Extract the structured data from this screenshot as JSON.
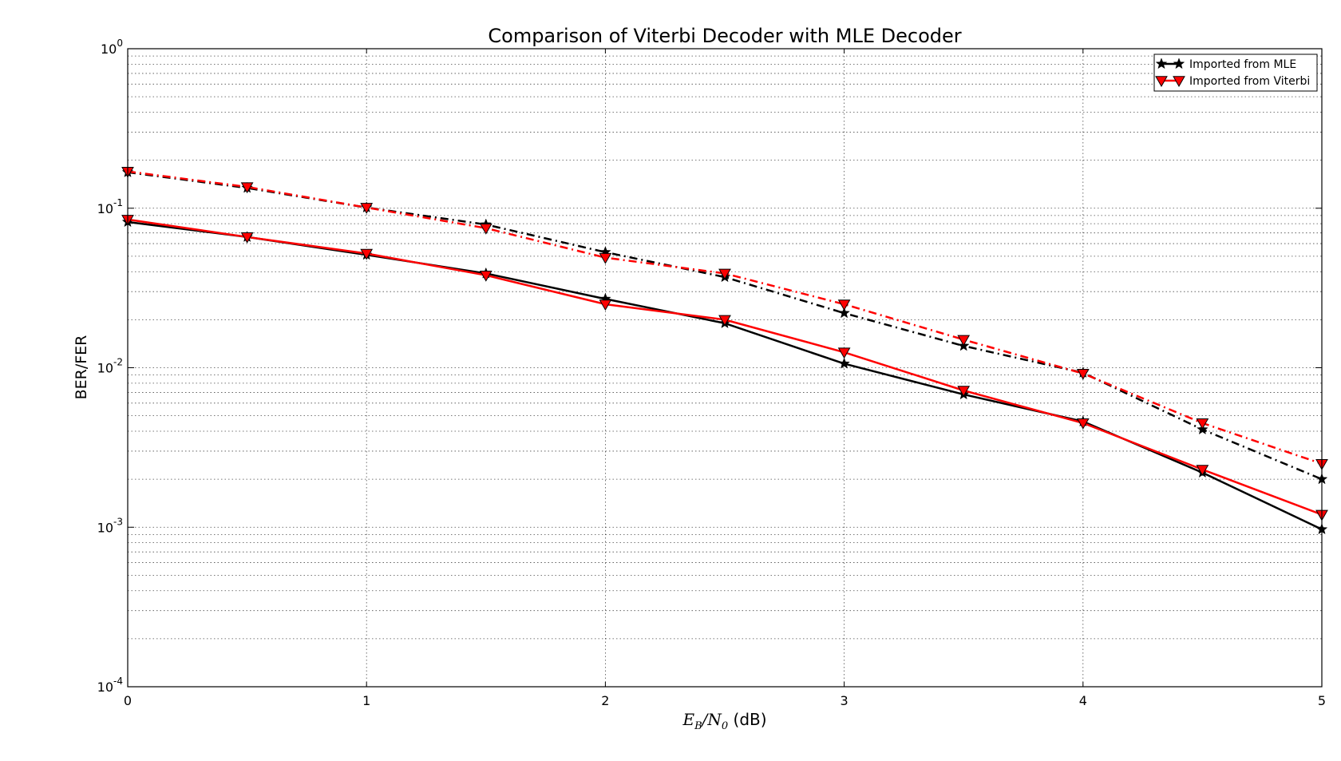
{
  "chart_data": {
    "type": "line",
    "title": "Comparison of Viterbi Decoder with MLE Decoder",
    "xlabel": {
      "main": "E",
      "main_sub": "B",
      "slash": "/N",
      "slash_sub": "0",
      "unit": " (dB)"
    },
    "ylabel": "BER/FER",
    "xlim": [
      0,
      5
    ],
    "ylim": [
      0.0001,
      1
    ],
    "yscale": "log",
    "grid": true,
    "legend_position": "top-right",
    "x_ticks": [
      "0",
      "1",
      "2",
      "3",
      "4",
      "5"
    ],
    "y_ticks": [
      {
        "base": "10",
        "exp": "-4"
      },
      {
        "base": "10",
        "exp": "-3"
      },
      {
        "base": "10",
        "exp": "-2"
      },
      {
        "base": "10",
        "exp": "-1"
      },
      {
        "base": "10",
        "exp": "0"
      }
    ],
    "legend": [
      {
        "label": "Imported from MLE",
        "color": "#000000",
        "marker": "star"
      },
      {
        "label": "Imported from Viterbi",
        "color": "#ff0000",
        "marker": "triangle-down"
      }
    ],
    "x": [
      0,
      0.5,
      1,
      1.5,
      2,
      2.5,
      3,
      3.5,
      4,
      4.5,
      5
    ],
    "series": [
      {
        "group": "MLE",
        "style": "solid",
        "color": "#000000",
        "marker": "star",
        "values": [
          0.082,
          0.066,
          0.051,
          0.039,
          0.027,
          0.019,
          0.0106,
          0.0068,
          0.0046,
          0.0022,
          0.00097
        ]
      },
      {
        "group": "MLE",
        "style": "dashdot",
        "color": "#000000",
        "marker": "star",
        "values": [
          0.168,
          0.134,
          0.101,
          0.079,
          0.053,
          0.037,
          0.022,
          0.0137,
          0.0093,
          0.0041,
          0.002
        ]
      },
      {
        "group": "Viterbi",
        "style": "solid",
        "color": "#ff0000",
        "marker": "triangle-down",
        "values": [
          0.085,
          0.066,
          0.052,
          0.038,
          0.025,
          0.02,
          0.0125,
          0.0072,
          0.0045,
          0.0023,
          0.0012
        ]
      },
      {
        "group": "Viterbi",
        "style": "dashdot",
        "color": "#ff0000",
        "marker": "triangle-down",
        "values": [
          0.17,
          0.136,
          0.101,
          0.075,
          0.049,
          0.039,
          0.025,
          0.015,
          0.0092,
          0.0045,
          0.0025
        ]
      }
    ]
  }
}
